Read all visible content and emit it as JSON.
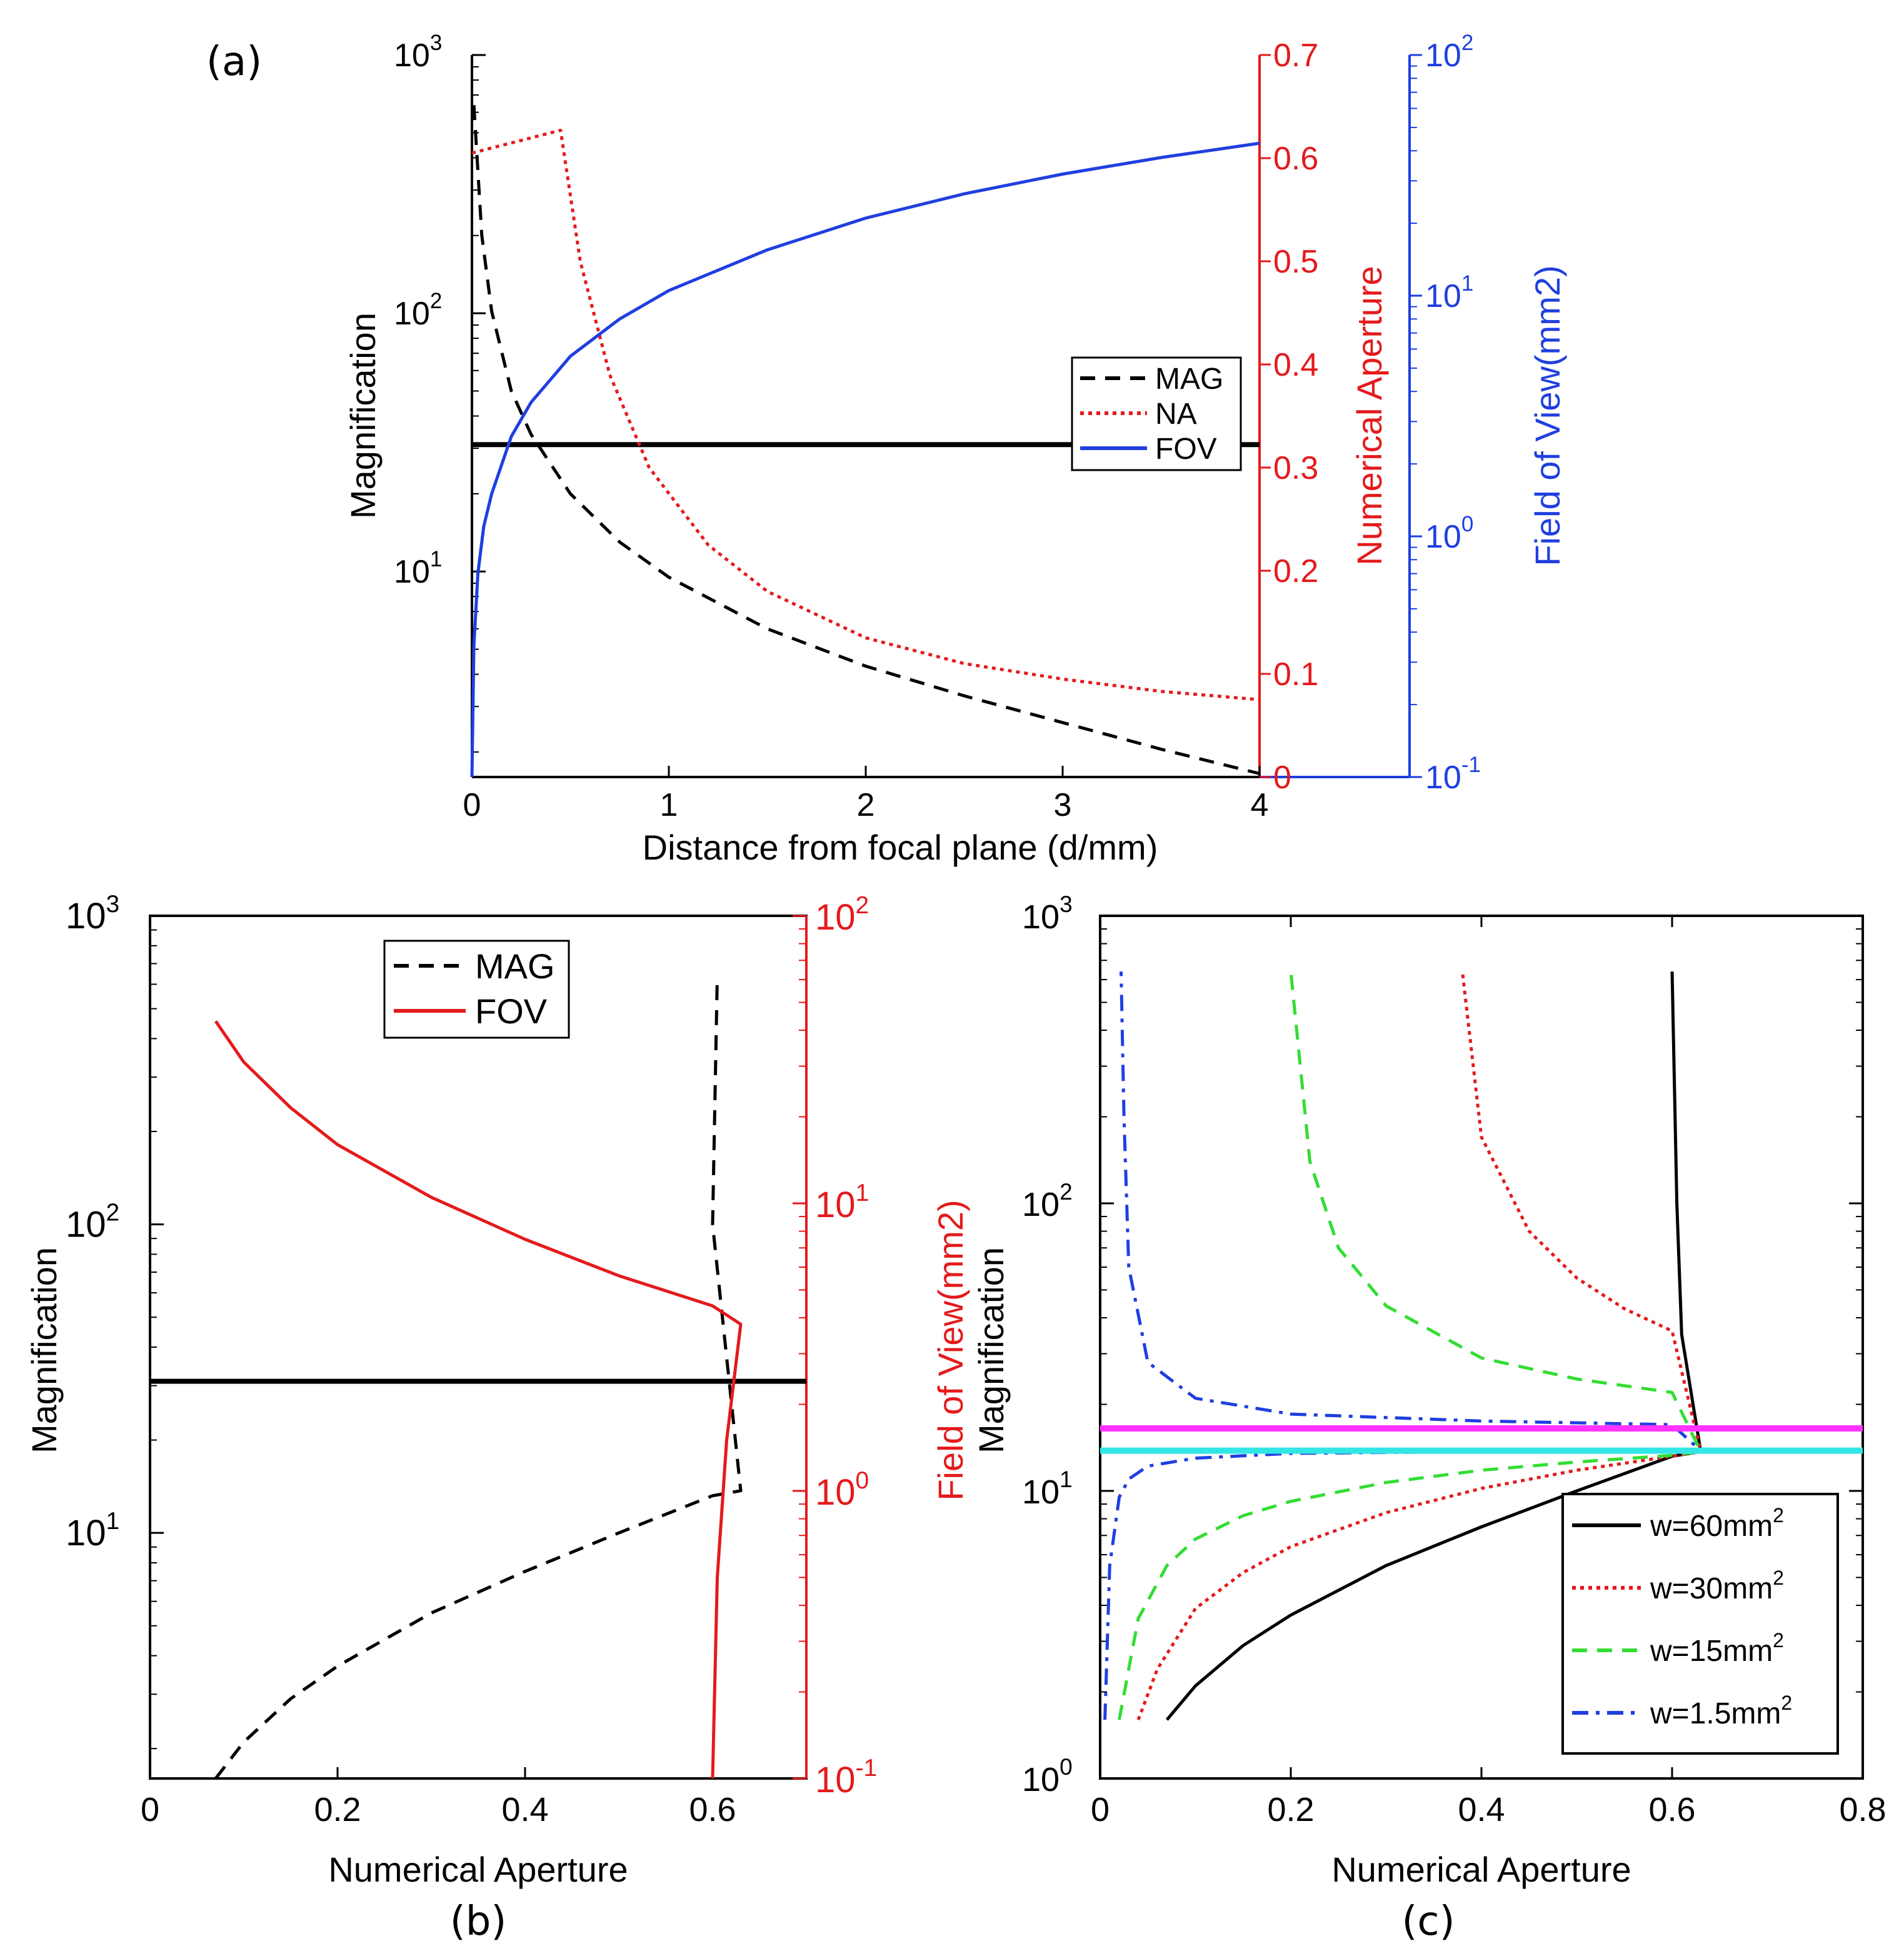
{
  "figure": {
    "panel_a": "(a)",
    "panel_b": "(b)",
    "panel_c": "(c)"
  },
  "colors": {
    "black": "#000000",
    "red": "#e41a1c",
    "blue": "#1f3fe0",
    "green": "#33dd33",
    "magenta": "#ff33ff",
    "cyan": "#33e6e6"
  },
  "chart_data": [
    {
      "id": "a",
      "type": "line",
      "xlabel": "Distance from focal plane (d/mm)",
      "ylabel_left": "Magnification",
      "ylabel_right1": "Numerical Aperture",
      "ylabel_right2": "Field of View(mm2)",
      "x_ticks": [
        "0",
        "1",
        "2",
        "3",
        "4"
      ],
      "xlim": [
        0,
        4
      ],
      "ylim_left_log": [
        1.6,
        1000
      ],
      "ylim_na": [
        0,
        0.7
      ],
      "ylim_fov_log": [
        0.1,
        100
      ],
      "na_ticks": [
        "0",
        "0.1",
        "0.2",
        "0.3",
        "0.4",
        "0.5",
        "0.6",
        "0.7"
      ],
      "left_ticks": [
        "10",
        "10",
        "10"
      ],
      "left_tick_exp": [
        "1",
        "2",
        "3"
      ],
      "fov_ticks": [
        "10",
        "10",
        "10",
        "10"
      ],
      "fov_tick_exp": [
        "-1",
        "0",
        "1",
        "2"
      ],
      "legend": [
        "MAG",
        "NA",
        "FOV"
      ],
      "threshold_mag": 31,
      "series": [
        {
          "name": "MAG",
          "axis": "left",
          "style": "dashed",
          "x": [
            0.01,
            0.05,
            0.1,
            0.2,
            0.3,
            0.5,
            0.75,
            1.0,
            1.5,
            2.0,
            2.5,
            3.0,
            3.5,
            4.0
          ],
          "values": [
            640,
            200,
            102,
            50,
            34,
            20,
            13,
            9.5,
            6,
            4.3,
            3.3,
            2.6,
            2.05,
            1.65
          ]
        },
        {
          "name": "NA",
          "axis": "na",
          "style": "dotted",
          "x": [
            0,
            0.45,
            0.55,
            0.7,
            0.9,
            1.2,
            1.5,
            2.0,
            2.5,
            3.0,
            3.5,
            4.0
          ],
          "values": [
            0.605,
            0.627,
            0.5,
            0.39,
            0.3,
            0.225,
            0.18,
            0.135,
            0.11,
            0.095,
            0.083,
            0.075
          ]
        },
        {
          "name": "FOV",
          "axis": "fov",
          "style": "solid",
          "x": [
            0,
            0.01,
            0.03,
            0.06,
            0.1,
            0.2,
            0.3,
            0.5,
            0.75,
            1.0,
            1.5,
            2.0,
            2.5,
            3.0,
            3.5,
            4.0
          ],
          "values": [
            0.1,
            0.35,
            0.7,
            1.1,
            1.5,
            2.6,
            3.6,
            5.6,
            8.0,
            10.5,
            15.5,
            21,
            26.5,
            32,
            37.5,
            43
          ]
        }
      ]
    },
    {
      "id": "b",
      "type": "line",
      "xlabel": "Numerical Aperture",
      "ylabel_left": "Magnification",
      "ylabel_right": "Field of View(mm2)",
      "x_ticks": [
        "0",
        "0.2",
        "0.4",
        "0.6"
      ],
      "xlim": [
        0,
        0.7
      ],
      "ylim_left_log": [
        1.6,
        1000
      ],
      "ylim_fov_log": [
        0.1,
        100
      ],
      "left_ticks": [
        "10",
        "10",
        "10"
      ],
      "left_tick_exp": [
        "1",
        "2",
        "3"
      ],
      "fov_ticks": [
        "10",
        "10",
        "10",
        "10"
      ],
      "fov_tick_exp": [
        "-1",
        "0",
        "1",
        "2"
      ],
      "legend": [
        "MAG",
        "FOV"
      ],
      "threshold_mag": 31,
      "series": [
        {
          "name": "MAG",
          "axis": "left",
          "style": "dashed",
          "x": [
            0.07,
            0.1,
            0.15,
            0.2,
            0.3,
            0.4,
            0.5,
            0.6,
            0.63,
            0.6,
            0.605
          ],
          "values": [
            1.6,
            2.1,
            2.9,
            3.7,
            5.5,
            7.5,
            10,
            13.2,
            13.7,
            100,
            640
          ]
        },
        {
          "name": "FOV",
          "axis": "fov",
          "style": "solid",
          "x": [
            0.6,
            0.605,
            0.615,
            0.63,
            0.6,
            0.5,
            0.4,
            0.3,
            0.2,
            0.15,
            0.1,
            0.07
          ],
          "values": [
            0.1,
            0.5,
            1.5,
            3.8,
            4.4,
            5.6,
            7.5,
            10.5,
            16,
            21.5,
            31,
            43
          ]
        }
      ]
    },
    {
      "id": "c",
      "type": "line",
      "xlabel": "Numerical Aperture",
      "ylabel": "Magnification",
      "x_ticks": [
        "0",
        "0.2",
        "0.4",
        "0.6",
        "0.8"
      ],
      "xlim": [
        0,
        0.8
      ],
      "ylim_log": [
        1,
        1000
      ],
      "y_ticks": [
        "10",
        "10",
        "10",
        "10"
      ],
      "y_tick_exp": [
        "0",
        "1",
        "2",
        "3"
      ],
      "hlines": [
        {
          "color": "magenta",
          "value": 16.5
        },
        {
          "color": "cyan",
          "value": 13.8
        }
      ],
      "legend": [
        "w=60mm2",
        "w=30mm2",
        "w=15mm2",
        "w=1.5mm2"
      ],
      "series": [
        {
          "name": "w=60mm2",
          "color": "black",
          "style": "solid",
          "x": [
            0.07,
            0.1,
            0.15,
            0.2,
            0.3,
            0.4,
            0.5,
            0.6,
            0.63,
            0.61,
            0.605,
            0.6
          ],
          "values": [
            1.6,
            2.1,
            2.9,
            3.7,
            5.5,
            7.5,
            10,
            13.2,
            13.7,
            35,
            100,
            640
          ]
        },
        {
          "name": "w=30mm2",
          "color": "red",
          "style": "dotted",
          "x": [
            0.04,
            0.06,
            0.1,
            0.15,
            0.2,
            0.3,
            0.4,
            0.5,
            0.6,
            0.63,
            0.6,
            0.55,
            0.5,
            0.45,
            0.4,
            0.38
          ],
          "values": [
            1.6,
            2.4,
            3.9,
            5.2,
            6.4,
            8.4,
            10.2,
            11.8,
            13.2,
            13.7,
            36,
            43,
            55,
            80,
            170,
            640
          ]
        },
        {
          "name": "w=15mm2",
          "color": "green",
          "style": "dashed",
          "x": [
            0.02,
            0.04,
            0.07,
            0.1,
            0.15,
            0.2,
            0.3,
            0.4,
            0.5,
            0.6,
            0.63,
            0.6,
            0.5,
            0.4,
            0.3,
            0.25,
            0.22,
            0.2
          ],
          "values": [
            1.6,
            3.6,
            5.5,
            6.8,
            8.2,
            9.2,
            10.7,
            11.8,
            12.6,
            13.3,
            13.7,
            22,
            24.5,
            29,
            44,
            70,
            140,
            640
          ]
        },
        {
          "name": "w=1.5mm2",
          "color": "blue",
          "style": "dashdot",
          "x": [
            0.005,
            0.01,
            0.02,
            0.03,
            0.05,
            0.1,
            0.2,
            0.4,
            0.6,
            0.63,
            0.6,
            0.4,
            0.2,
            0.1,
            0.05,
            0.03,
            0.025,
            0.022
          ],
          "values": [
            1.6,
            5.5,
            9.5,
            11,
            12.2,
            13,
            13.5,
            13.7,
            13.8,
            13.8,
            17,
            17.5,
            18.5,
            21,
            28,
            60,
            200,
            640
          ]
        }
      ]
    }
  ]
}
